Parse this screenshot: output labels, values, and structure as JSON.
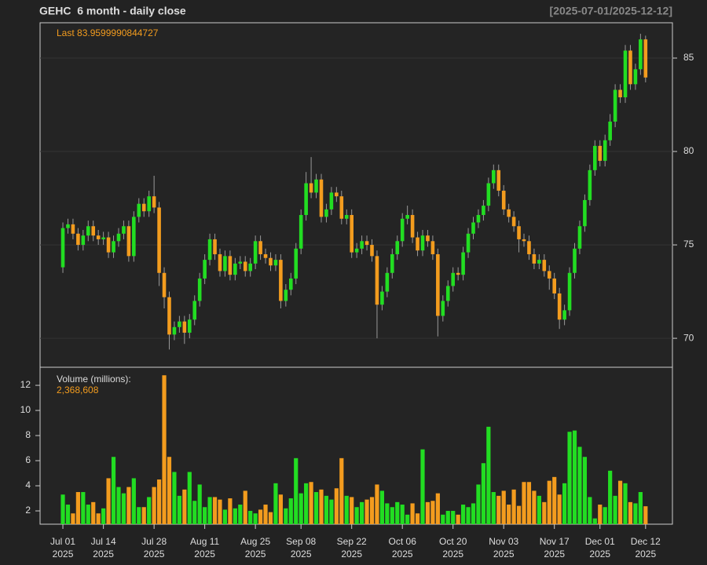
{
  "chart_data": [
    {
      "type": "candlestick",
      "title": "GEHC  6 month - daily close",
      "subtitle": "[2025-07-01/2025-12-12]",
      "last_text": "Last 83.9599990844727",
      "up_color": "#22dd22",
      "down_color": "#f39c1e",
      "wick_color": "#999999",
      "xlim": [
        -4.5,
        120.3
      ],
      "ylim": [
        68.45,
        86.89
      ],
      "yticks": [
        70,
        75,
        80,
        85
      ],
      "grid": true,
      "open": [
        73.8,
        75.9,
        76.1,
        75.6,
        75.0,
        75.5,
        76.0,
        75.5,
        75.3,
        75.4,
        74.6,
        75.2,
        75.6,
        76.0,
        74.4,
        76.5,
        77.2,
        76.8,
        77.6,
        77.0,
        73.5,
        72.2,
        70.2,
        70.6,
        70.9,
        70.3,
        71.0,
        72.0,
        73.2,
        74.2,
        75.3,
        74.5,
        73.6,
        74.4,
        73.4,
        74.0,
        74.1,
        73.6,
        74.0,
        75.2,
        74.5,
        74.3,
        73.9,
        74.2,
        72.0,
        72.6,
        73.2,
        74.8,
        76.6,
        78.3,
        77.8,
        78.5,
        76.5,
        76.9,
        77.8,
        77.6,
        76.4,
        76.6,
        74.6,
        74.8,
        75.2,
        75.0,
        74.4,
        71.8,
        72.5,
        73.5,
        74.5,
        75.2,
        76.4,
        76.6,
        75.4,
        74.7,
        75.5,
        75.2,
        74.5,
        71.2,
        72.0,
        72.8,
        73.5,
        73.4,
        74.6,
        75.6,
        76.2,
        76.6,
        77.1,
        78.3,
        79.0,
        77.9,
        76.9,
        76.5,
        76.0,
        75.3,
        75.2,
        74.5,
        74.0,
        74.2,
        73.6,
        73.2,
        72.4,
        71.0,
        71.5,
        73.5,
        74.8,
        76.0,
        77.4,
        79.0,
        80.3,
        79.5,
        80.6,
        81.6,
        83.3,
        82.9,
        85.4,
        83.6,
        84.4,
        86.0
      ],
      "high": [
        76.2,
        76.4,
        76.4,
        75.9,
        75.8,
        76.3,
        76.3,
        75.8,
        75.7,
        75.7,
        75.5,
        75.9,
        76.3,
        76.3,
        76.8,
        77.5,
        77.5,
        77.9,
        78.7,
        77.3,
        73.8,
        72.5,
        70.9,
        71.2,
        71.2,
        71.3,
        72.3,
        73.5,
        74.5,
        75.6,
        75.6,
        74.8,
        74.7,
        74.7,
        74.3,
        74.4,
        74.4,
        74.3,
        75.5,
        75.5,
        74.8,
        74.6,
        74.5,
        74.5,
        72.9,
        73.5,
        75.1,
        76.9,
        78.9,
        79.7,
        78.8,
        78.8,
        77.2,
        78.1,
        78.1,
        77.9,
        76.9,
        76.9,
        75.1,
        75.5,
        75.5,
        75.3,
        74.7,
        72.8,
        73.8,
        74.8,
        75.5,
        76.7,
        77.1,
        76.9,
        75.7,
        75.8,
        75.8,
        75.5,
        74.8,
        72.3,
        73.1,
        73.8,
        73.8,
        74.9,
        75.9,
        76.5,
        76.9,
        77.4,
        78.6,
        79.3,
        79.3,
        78.2,
        77.2,
        76.8,
        76.3,
        75.6,
        75.5,
        74.8,
        74.5,
        74.5,
        73.9,
        73.5,
        72.7,
        71.8,
        73.8,
        75.1,
        76.3,
        77.7,
        79.3,
        80.6,
        80.6,
        80.9,
        82.0,
        83.6,
        83.6,
        85.7,
        85.7,
        84.7,
        86.3,
        86.2
      ],
      "low": [
        73.5,
        75.6,
        75.3,
        74.7,
        74.7,
        75.2,
        75.2,
        75.0,
        75.0,
        74.3,
        74.3,
        74.9,
        75.3,
        74.1,
        74.1,
        76.2,
        76.5,
        76.5,
        76.7,
        72.8,
        71.6,
        69.4,
        69.9,
        70.3,
        69.7,
        70.0,
        70.7,
        71.7,
        72.9,
        73.9,
        74.2,
        73.3,
        73.3,
        73.1,
        73.1,
        73.7,
        73.3,
        73.3,
        73.7,
        74.2,
        74.0,
        73.6,
        73.6,
        71.6,
        71.7,
        72.3,
        72.9,
        74.5,
        76.3,
        77.5,
        77.5,
        76.2,
        76.2,
        76.6,
        77.3,
        76.1,
        76.1,
        74.3,
        74.3,
        74.5,
        74.7,
        74.1,
        70.0,
        71.5,
        72.2,
        73.2,
        74.2,
        74.9,
        76.1,
        75.1,
        74.4,
        74.4,
        74.9,
        74.2,
        70.1,
        70.9,
        71.7,
        72.5,
        73.1,
        73.1,
        74.3,
        75.3,
        75.9,
        76.3,
        76.8,
        78.0,
        77.6,
        76.6,
        76.2,
        75.7,
        74.6,
        74.9,
        74.2,
        73.7,
        73.7,
        73.3,
        72.6,
        72.1,
        70.5,
        70.7,
        71.2,
        73.2,
        74.5,
        75.7,
        77.1,
        78.7,
        79.2,
        79.2,
        80.3,
        81.3,
        82.6,
        82.6,
        83.3,
        83.3,
        84.1,
        83.7
      ],
      "close": [
        75.9,
        76.1,
        75.6,
        75.0,
        75.5,
        76.0,
        75.5,
        75.3,
        75.4,
        74.6,
        75.2,
        75.6,
        76.0,
        74.4,
        76.5,
        77.2,
        76.8,
        77.6,
        77.0,
        73.5,
        72.2,
        70.2,
        70.6,
        70.9,
        70.3,
        71.0,
        72.0,
        73.2,
        74.2,
        75.3,
        74.5,
        73.6,
        74.4,
        73.4,
        74.0,
        74.1,
        73.6,
        74.0,
        75.2,
        74.5,
        74.3,
        73.9,
        74.2,
        72.0,
        72.6,
        73.2,
        74.8,
        76.6,
        78.3,
        77.8,
        78.5,
        76.5,
        76.9,
        77.8,
        77.6,
        76.4,
        76.6,
        74.6,
        74.8,
        75.2,
        75.0,
        74.4,
        71.8,
        72.5,
        73.5,
        74.5,
        75.2,
        76.4,
        76.6,
        75.4,
        74.7,
        75.5,
        75.2,
        74.5,
        71.2,
        72.0,
        72.8,
        73.5,
        73.4,
        74.6,
        75.6,
        76.2,
        76.6,
        77.1,
        78.3,
        79.0,
        77.9,
        76.9,
        76.5,
        76.0,
        75.3,
        75.2,
        74.5,
        74.0,
        74.2,
        73.6,
        73.2,
        72.4,
        71.0,
        71.5,
        73.5,
        74.8,
        76.0,
        77.4,
        79.0,
        80.3,
        79.5,
        80.6,
        81.6,
        83.3,
        82.9,
        85.4,
        83.6,
        84.4,
        86.0,
        83.9599990844727
      ]
    },
    {
      "type": "bar",
      "title": "Volume (millions):",
      "last_text": "2,368,608",
      "xlim": [
        -4.5,
        120.3
      ],
      "ylim": [
        0.94,
        13.44
      ],
      "yticks": [
        2,
        4,
        6,
        8,
        10,
        12
      ],
      "xticks": [
        {
          "value": 0,
          "label": "Jul 01",
          "year": "2025"
        },
        {
          "value": 8,
          "label": "Jul 14",
          "year": "2025"
        },
        {
          "value": 18,
          "label": "Jul 28",
          "year": "2025"
        },
        {
          "value": 28,
          "label": "Aug 11",
          "year": "2025"
        },
        {
          "value": 38,
          "label": "Aug 25",
          "year": "2025"
        },
        {
          "value": 47,
          "label": "Sep 08",
          "year": "2025"
        },
        {
          "value": 57,
          "label": "Sep 22",
          "year": "2025"
        },
        {
          "value": 67,
          "label": "Oct 06",
          "year": "2025"
        },
        {
          "value": 77,
          "label": "Oct 20",
          "year": "2025"
        },
        {
          "value": 87,
          "label": "Nov 03",
          "year": "2025"
        },
        {
          "value": 97,
          "label": "Nov 17",
          "year": "2025"
        },
        {
          "value": 106,
          "label": "Dec 01",
          "year": "2025"
        },
        {
          "value": 115,
          "label": "Dec 12",
          "year": "2025"
        }
      ],
      "values": [
        3.3,
        2.5,
        1.8,
        3.5,
        3.5,
        2.5,
        2.7,
        1.8,
        2.2,
        4.6,
        6.3,
        3.9,
        3.4,
        3.9,
        4.6,
        2.3,
        2.3,
        3.1,
        3.9,
        4.5,
        12.8,
        6.3,
        5.1,
        3.2,
        3.7,
        5.1,
        2.8,
        4.1,
        2.3,
        3.1,
        3.1,
        2.9,
        2.1,
        3.0,
        2.2,
        2.5,
        3.6,
        2.0,
        1.8,
        2.1,
        2.5,
        1.9,
        4.2,
        3.3,
        2.2,
        3.0,
        6.2,
        3.4,
        4.2,
        4.3,
        3.5,
        3.7,
        3.2,
        2.9,
        3.8,
        6.2,
        3.2,
        3.1,
        2.3,
        2.7,
        2.9,
        3.1,
        4.1,
        3.6,
        2.6,
        2.3,
        2.7,
        2.5,
        1.7,
        2.6,
        1.8,
        6.9,
        2.7,
        2.8,
        3.4,
        1.7,
        2.0,
        2.0,
        1.7,
        2.5,
        2.3,
        2.6,
        4.1,
        5.8,
        8.7,
        3.5,
        3.2,
        3.6,
        2.5,
        3.7,
        2.4,
        4.3,
        4.3,
        3.6,
        3.2,
        2.7,
        4.4,
        4.7,
        3.3,
        4.2,
        8.3,
        8.4,
        7.1,
        6.3,
        3.1,
        1.4,
        2.5,
        2.3,
        5.2,
        3.2,
        4.4,
        4.2,
        2.7,
        2.6,
        3.5,
        2.368608
      ]
    }
  ]
}
